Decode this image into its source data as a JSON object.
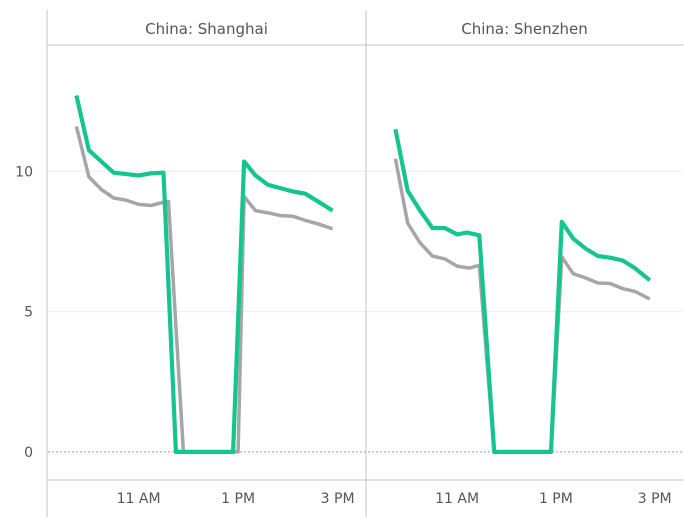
{
  "chart_data": {
    "type": "line",
    "ylim": [
      -1,
      14.5
    ],
    "y_ticks": [
      {
        "value": 0,
        "label": "0"
      },
      {
        "value": 5,
        "label": "5"
      },
      {
        "value": 10,
        "label": "10"
      }
    ],
    "x_domain": [
      9.5,
      15.35
    ],
    "x_ticks": [
      {
        "value": 11,
        "label": "11 AM"
      },
      {
        "value": 13,
        "label": "1 PM"
      },
      {
        "value": 15,
        "label": "3 PM"
      }
    ],
    "zero_line": "dotted",
    "gridlines": true,
    "colors": {
      "gray": "#a6a6a6",
      "green": "#16c58e",
      "grid": "#ececec",
      "axis": "#c4c4c4"
    },
    "panels": [
      {
        "title": "China: Shanghai",
        "series": [
          {
            "color": "#a6a6a6",
            "points": [
              [
                9.75,
                11.6
              ],
              [
                10.0,
                9.8
              ],
              [
                10.25,
                9.35
              ],
              [
                10.5,
                9.05
              ],
              [
                10.75,
                8.97
              ],
              [
                11.0,
                8.82
              ],
              [
                11.25,
                8.78
              ],
              [
                11.5,
                8.9
              ],
              [
                11.6,
                8.92
              ],
              [
                11.9,
                0
              ],
              [
                13.0,
                0
              ],
              [
                13.12,
                9.1
              ],
              [
                13.35,
                8.6
              ],
              [
                13.6,
                8.52
              ],
              [
                13.85,
                8.42
              ],
              [
                14.1,
                8.4
              ],
              [
                14.35,
                8.25
              ],
              [
                14.6,
                8.13
              ],
              [
                14.9,
                7.95
              ]
            ]
          },
          {
            "color": "#16c58e",
            "points": [
              [
                9.75,
                12.7
              ],
              [
                10.0,
                10.75
              ],
              [
                10.25,
                10.35
              ],
              [
                10.5,
                9.95
              ],
              [
                10.75,
                9.9
              ],
              [
                11.0,
                9.85
              ],
              [
                11.25,
                9.93
              ],
              [
                11.5,
                9.95
              ],
              [
                11.75,
                0
              ],
              [
                12.9,
                0
              ],
              [
                13.12,
                10.35
              ],
              [
                13.35,
                9.85
              ],
              [
                13.6,
                9.52
              ],
              [
                13.85,
                9.4
              ],
              [
                14.1,
                9.28
              ],
              [
                14.35,
                9.2
              ],
              [
                14.6,
                8.93
              ],
              [
                14.9,
                8.6
              ]
            ]
          }
        ]
      },
      {
        "title": "China: Shenzhen",
        "series": [
          {
            "color": "#a6a6a6",
            "points": [
              [
                9.75,
                10.45
              ],
              [
                10.0,
                8.15
              ],
              [
                10.25,
                7.45
              ],
              [
                10.5,
                6.98
              ],
              [
                10.75,
                6.88
              ],
              [
                11.0,
                6.62
              ],
              [
                11.25,
                6.55
              ],
              [
                11.45,
                6.65
              ],
              [
                11.75,
                0
              ],
              [
                12.9,
                0
              ],
              [
                13.12,
                6.95
              ],
              [
                13.35,
                6.35
              ],
              [
                13.6,
                6.2
              ],
              [
                13.85,
                6.02
              ],
              [
                14.1,
                6.0
              ],
              [
                14.35,
                5.82
              ],
              [
                14.6,
                5.72
              ],
              [
                14.9,
                5.45
              ]
            ]
          },
          {
            "color": "#16c58e",
            "points": [
              [
                9.75,
                11.5
              ],
              [
                10.0,
                9.3
              ],
              [
                10.25,
                8.6
              ],
              [
                10.5,
                7.98
              ],
              [
                10.75,
                7.98
              ],
              [
                11.0,
                7.75
              ],
              [
                11.2,
                7.82
              ],
              [
                11.45,
                7.72
              ],
              [
                11.75,
                0
              ],
              [
                12.9,
                0
              ],
              [
                13.12,
                8.2
              ],
              [
                13.35,
                7.6
              ],
              [
                13.6,
                7.25
              ],
              [
                13.85,
                6.98
              ],
              [
                14.1,
                6.92
              ],
              [
                14.35,
                6.82
              ],
              [
                14.6,
                6.55
              ],
              [
                14.9,
                6.12
              ]
            ]
          }
        ]
      }
    ]
  }
}
